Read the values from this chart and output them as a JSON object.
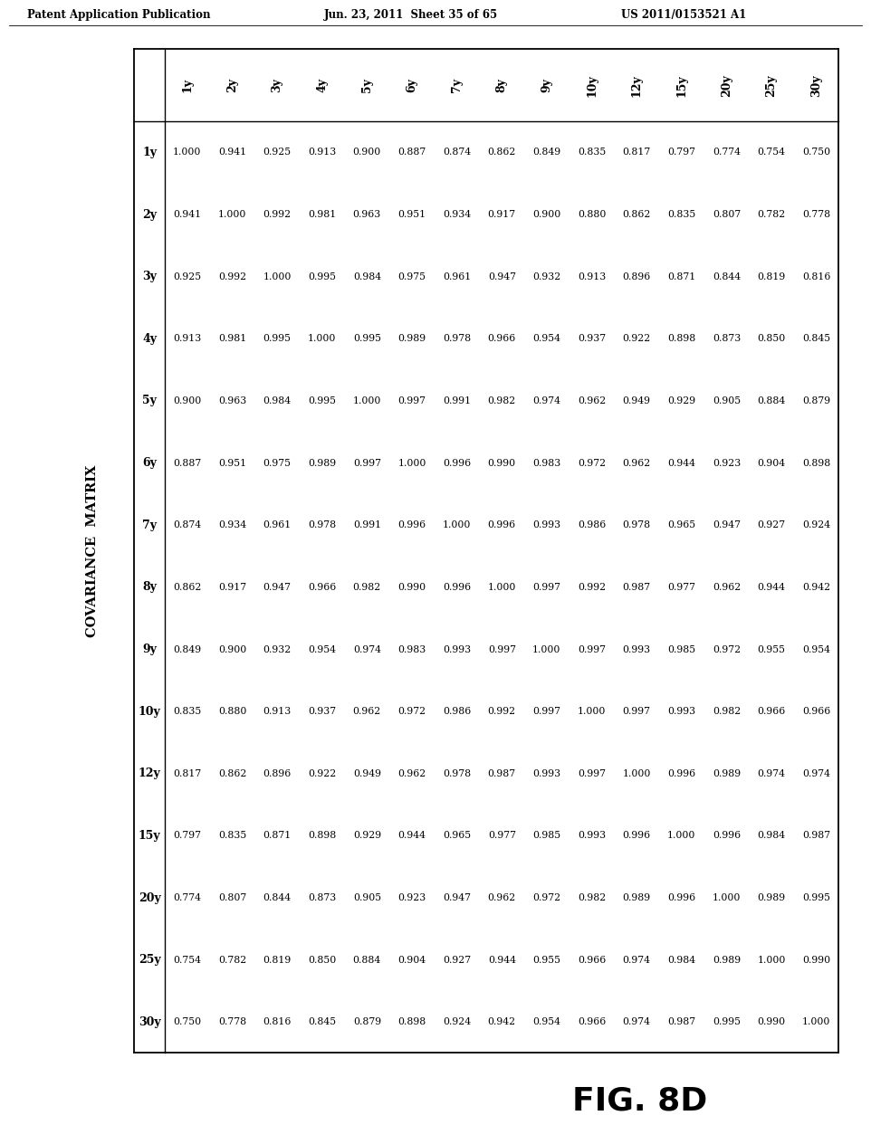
{
  "title": "COVARIANCE  MATRIX",
  "col_labels": [
    "1y",
    "2y",
    "3y",
    "4y",
    "5y",
    "6y",
    "7y",
    "8y",
    "9y",
    "10y",
    "12y",
    "15y",
    "20y",
    "25y",
    "30y"
  ],
  "row_labels": [
    "1y",
    "2y",
    "3y",
    "4y",
    "5y",
    "6y",
    "7y",
    "8y",
    "9y",
    "10y",
    "12y",
    "15y",
    "20y",
    "25y",
    "30y"
  ],
  "data": [
    [
      1.0,
      0.941,
      0.925,
      0.913,
      0.9,
      0.887,
      0.874,
      0.862,
      0.849,
      0.835,
      0.817,
      0.797,
      0.774,
      0.754,
      0.75
    ],
    [
      0.941,
      1.0,
      0.992,
      0.981,
      0.963,
      0.951,
      0.934,
      0.917,
      0.9,
      0.88,
      0.862,
      0.835,
      0.807,
      0.782,
      0.778
    ],
    [
      0.925,
      0.992,
      1.0,
      0.995,
      0.984,
      0.975,
      0.961,
      0.947,
      0.932,
      0.913,
      0.896,
      0.871,
      0.844,
      0.819,
      0.816
    ],
    [
      0.913,
      0.981,
      0.995,
      1.0,
      0.995,
      0.989,
      0.978,
      0.966,
      0.954,
      0.937,
      0.922,
      0.898,
      0.873,
      0.85,
      0.845
    ],
    [
      0.9,
      0.963,
      0.984,
      0.995,
      1.0,
      0.997,
      0.991,
      0.982,
      0.974,
      0.962,
      0.949,
      0.929,
      0.905,
      0.884,
      0.879
    ],
    [
      0.887,
      0.951,
      0.975,
      0.989,
      0.997,
      1.0,
      0.996,
      0.99,
      0.983,
      0.972,
      0.962,
      0.944,
      0.923,
      0.904,
      0.898
    ],
    [
      0.874,
      0.934,
      0.961,
      0.978,
      0.991,
      0.996,
      1.0,
      0.996,
      0.993,
      0.986,
      0.978,
      0.965,
      0.947,
      0.927,
      0.924
    ],
    [
      0.862,
      0.917,
      0.947,
      0.966,
      0.982,
      0.99,
      0.996,
      1.0,
      0.997,
      0.992,
      0.987,
      0.977,
      0.962,
      0.944,
      0.942
    ],
    [
      0.849,
      0.9,
      0.932,
      0.954,
      0.974,
      0.983,
      0.993,
      0.997,
      1.0,
      0.997,
      0.993,
      0.985,
      0.972,
      0.955,
      0.954
    ],
    [
      0.835,
      0.88,
      0.913,
      0.937,
      0.962,
      0.972,
      0.986,
      0.992,
      0.997,
      1.0,
      0.997,
      0.993,
      0.982,
      0.966,
      0.966
    ],
    [
      0.817,
      0.862,
      0.896,
      0.922,
      0.949,
      0.962,
      0.978,
      0.987,
      0.993,
      0.997,
      1.0,
      0.996,
      0.989,
      0.974,
      0.974
    ],
    [
      0.797,
      0.835,
      0.871,
      0.898,
      0.929,
      0.944,
      0.965,
      0.977,
      0.985,
      0.993,
      0.996,
      1.0,
      0.996,
      0.984,
      0.987
    ],
    [
      0.774,
      0.807,
      0.844,
      0.873,
      0.905,
      0.923,
      0.947,
      0.962,
      0.972,
      0.982,
      0.989,
      0.996,
      1.0,
      0.989,
      0.995
    ],
    [
      0.754,
      0.782,
      0.819,
      0.85,
      0.884,
      0.904,
      0.927,
      0.944,
      0.955,
      0.966,
      0.974,
      0.984,
      0.989,
      1.0,
      0.99
    ],
    [
      0.75,
      0.778,
      0.816,
      0.845,
      0.879,
      0.898,
      0.924,
      0.942,
      0.954,
      0.966,
      0.974,
      0.987,
      0.995,
      0.99,
      1.0
    ]
  ],
  "bg_color": "#ffffff",
  "text_color": "#000000",
  "header_pub": "Patent Application Publication",
  "header_date": "Jun. 23, 2011  Sheet 35 of 65",
  "header_patent": "US 2011/0153521 A1",
  "fig_label": "FIG. 8D",
  "data_font_size": 7.8,
  "label_font_size": 9.0,
  "title_font_size": 10.5,
  "header_font_size": 8.5,
  "fig_label_font_size": 26
}
